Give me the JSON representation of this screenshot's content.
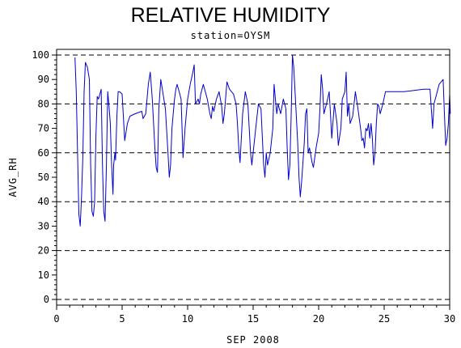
{
  "chart_data": {
    "type": "line",
    "title": "RELATIVE HUMIDITY",
    "subtitle": "station=OYSM",
    "xlabel": "SEP 2008",
    "ylabel": "AVG_RH",
    "xlim": [
      0,
      30
    ],
    "ylim": [
      0,
      100
    ],
    "x_ticks": [
      0,
      5,
      10,
      15,
      20,
      25,
      30
    ],
    "y_ticks": [
      0,
      10,
      20,
      30,
      40,
      50,
      60,
      70,
      80,
      90,
      100
    ],
    "reference_lines": [
      0,
      20,
      40,
      60,
      80,
      100
    ],
    "grid": "dashed horizontal reference lines",
    "colors": {
      "line": "#0000cc",
      "axes": "#000000"
    },
    "series": [
      {
        "points": [
          [
            1.4,
            99
          ],
          [
            1.5,
            85
          ],
          [
            1.6,
            60
          ],
          [
            1.7,
            35
          ],
          [
            1.8,
            30
          ],
          [
            1.9,
            42
          ],
          [
            2.0,
            58
          ],
          [
            2.1,
            85
          ],
          [
            2.2,
            97
          ],
          [
            2.35,
            95
          ],
          [
            2.5,
            90
          ],
          [
            2.6,
            55
          ],
          [
            2.7,
            36
          ],
          [
            2.8,
            34
          ],
          [
            2.9,
            40
          ],
          [
            3.0,
            67
          ],
          [
            3.1,
            83
          ],
          [
            3.2,
            82
          ],
          [
            3.3,
            84
          ],
          [
            3.4,
            86
          ],
          [
            3.5,
            55
          ],
          [
            3.6,
            36
          ],
          [
            3.7,
            32
          ],
          [
            3.8,
            55
          ],
          [
            3.9,
            85
          ],
          [
            4.0,
            79
          ],
          [
            4.1,
            72
          ],
          [
            4.2,
            55
          ],
          [
            4.3,
            43
          ],
          [
            4.35,
            55
          ],
          [
            4.45,
            60
          ],
          [
            4.5,
            57
          ],
          [
            4.6,
            75
          ],
          [
            4.7,
            85
          ],
          [
            4.8,
            85
          ],
          [
            5.0,
            84
          ],
          [
            5.2,
            65
          ],
          [
            5.4,
            72
          ],
          [
            5.6,
            75
          ],
          [
            6.0,
            76
          ],
          [
            6.5,
            77
          ],
          [
            6.6,
            74
          ],
          [
            6.8,
            76
          ],
          [
            7.0,
            88
          ],
          [
            7.15,
            93
          ],
          [
            7.3,
            82
          ],
          [
            7.5,
            62
          ],
          [
            7.6,
            54
          ],
          [
            7.7,
            52
          ],
          [
            7.8,
            78
          ],
          [
            7.95,
            90
          ],
          [
            8.1,
            85
          ],
          [
            8.3,
            78
          ],
          [
            8.5,
            60
          ],
          [
            8.6,
            50
          ],
          [
            8.7,
            55
          ],
          [
            8.8,
            70
          ],
          [
            9.0,
            82
          ],
          [
            9.1,
            86
          ],
          [
            9.2,
            88
          ],
          [
            9.35,
            85
          ],
          [
            9.5,
            82
          ],
          [
            9.65,
            58
          ],
          [
            9.8,
            70
          ],
          [
            10.0,
            82
          ],
          [
            10.2,
            88
          ],
          [
            10.4,
            93
          ],
          [
            10.5,
            96
          ],
          [
            10.6,
            80
          ],
          [
            10.8,
            82
          ],
          [
            10.9,
            80
          ],
          [
            11.0,
            84
          ],
          [
            11.2,
            88
          ],
          [
            11.5,
            82
          ],
          [
            11.7,
            76
          ],
          [
            11.8,
            74
          ],
          [
            11.9,
            79
          ],
          [
            12.0,
            77
          ],
          [
            12.2,
            82
          ],
          [
            12.4,
            85
          ],
          [
            12.6,
            79
          ],
          [
            12.7,
            72
          ],
          [
            12.8,
            76
          ],
          [
            13.0,
            89
          ],
          [
            13.2,
            86
          ],
          [
            13.5,
            84
          ],
          [
            13.7,
            80
          ],
          [
            13.8,
            72
          ],
          [
            13.9,
            62
          ],
          [
            14.0,
            56
          ],
          [
            14.1,
            66
          ],
          [
            14.2,
            76
          ],
          [
            14.4,
            85
          ],
          [
            14.6,
            80
          ],
          [
            14.8,
            60
          ],
          [
            14.9,
            55
          ],
          [
            15.0,
            60
          ],
          [
            15.2,
            70
          ],
          [
            15.4,
            80
          ],
          [
            15.6,
            78
          ],
          [
            15.8,
            55
          ],
          [
            15.9,
            50
          ],
          [
            16.0,
            60
          ],
          [
            16.1,
            55
          ],
          [
            16.3,
            60
          ],
          [
            16.5,
            70
          ],
          [
            16.6,
            88
          ],
          [
            16.7,
            82
          ],
          [
            16.8,
            76
          ],
          [
            16.9,
            80
          ],
          [
            17.1,
            76
          ],
          [
            17.3,
            82
          ],
          [
            17.5,
            78
          ],
          [
            17.6,
            62
          ],
          [
            17.7,
            49
          ],
          [
            17.8,
            55
          ],
          [
            17.9,
            75
          ],
          [
            18.0,
            100
          ],
          [
            18.1,
            95
          ],
          [
            18.25,
            80
          ],
          [
            18.4,
            64
          ],
          [
            18.5,
            50
          ],
          [
            18.6,
            42
          ],
          [
            18.7,
            48
          ],
          [
            18.9,
            64
          ],
          [
            19.0,
            76
          ],
          [
            19.1,
            78
          ],
          [
            19.2,
            60
          ],
          [
            19.3,
            62
          ],
          [
            19.5,
            56
          ],
          [
            19.6,
            54
          ],
          [
            19.8,
            62
          ],
          [
            20.0,
            68
          ],
          [
            20.1,
            78
          ],
          [
            20.2,
            92
          ],
          [
            20.3,
            86
          ],
          [
            20.4,
            76
          ],
          [
            20.6,
            80
          ],
          [
            20.8,
            85
          ],
          [
            20.9,
            76
          ],
          [
            21.0,
            66
          ],
          [
            21.2,
            80
          ],
          [
            21.4,
            72
          ],
          [
            21.5,
            63
          ],
          [
            21.7,
            70
          ],
          [
            21.8,
            82
          ],
          [
            22.0,
            85
          ],
          [
            22.1,
            93
          ],
          [
            22.2,
            75
          ],
          [
            22.3,
            80
          ],
          [
            22.4,
            72
          ],
          [
            22.6,
            75
          ],
          [
            22.8,
            85
          ],
          [
            23.0,
            78
          ],
          [
            23.2,
            70
          ],
          [
            23.3,
            65
          ],
          [
            23.4,
            66
          ],
          [
            23.5,
            62
          ],
          [
            23.6,
            70
          ],
          [
            23.7,
            69
          ],
          [
            23.8,
            72
          ],
          [
            23.9,
            66
          ],
          [
            24.0,
            72
          ],
          [
            24.1,
            66
          ],
          [
            24.2,
            55
          ],
          [
            24.3,
            60
          ],
          [
            24.4,
            72
          ],
          [
            24.5,
            80
          ],
          [
            24.6,
            79
          ],
          [
            24.7,
            76
          ],
          [
            24.9,
            80
          ],
          [
            25.1,
            85
          ],
          [
            25.5,
            85
          ],
          [
            26.5,
            85
          ],
          [
            28.0,
            86
          ],
          [
            28.5,
            86
          ],
          [
            28.7,
            70
          ],
          [
            28.8,
            80
          ],
          [
            29.2,
            88
          ],
          [
            29.5,
            90
          ],
          [
            29.6,
            76
          ],
          [
            29.7,
            63
          ],
          [
            29.8,
            66
          ],
          [
            29.9,
            72
          ],
          [
            30.0,
            84
          ],
          [
            30.05,
            76
          ]
        ]
      }
    ]
  }
}
